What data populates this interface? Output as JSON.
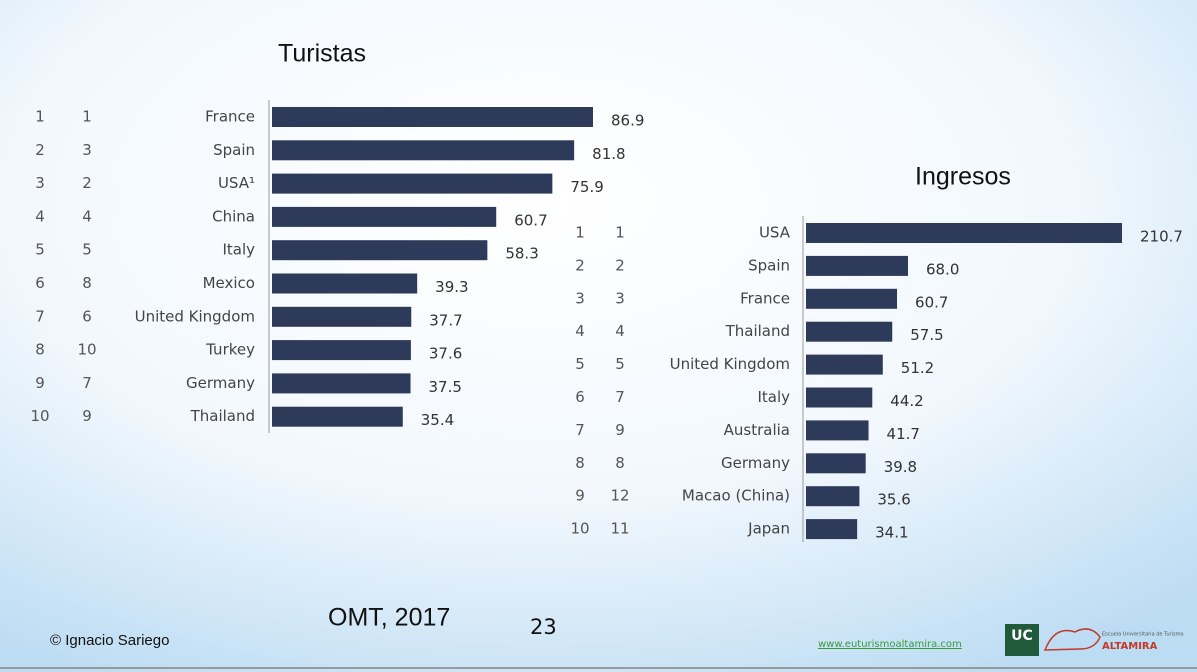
{
  "chart_data": [
    {
      "type": "bar",
      "orientation": "horizontal",
      "title": "Turistas",
      "color": "#2e3a5a",
      "rank_2017": [
        "1",
        "2",
        "3",
        "4",
        "5",
        "6",
        "7",
        "8",
        "9",
        "10"
      ],
      "rank_2016": [
        "1",
        "3",
        "2",
        "4",
        "5",
        "8",
        "6",
        "10",
        "7",
        "9"
      ],
      "categories": [
        "France",
        "Spain",
        "USA¹",
        "China",
        "Italy",
        "Mexico",
        "United Kingdom",
        "Turkey",
        "Germany",
        "Thailand"
      ],
      "values": [
        86.9,
        81.8,
        75.9,
        60.7,
        58.3,
        39.3,
        37.7,
        37.6,
        37.5,
        35.4
      ]
    },
    {
      "type": "bar",
      "orientation": "horizontal",
      "title": "Ingresos",
      "color": "#2e3a5a",
      "rank_2017": [
        "1",
        "2",
        "3",
        "4",
        "5",
        "6",
        "7",
        "8",
        "9",
        "10"
      ],
      "rank_2016": [
        "1",
        "2",
        "3",
        "4",
        "5",
        "7",
        "9",
        "8",
        "12",
        "11"
      ],
      "categories": [
        "USA",
        "Spain",
        "France",
        "Thailand",
        "United Kingdom",
        "Italy",
        "Australia",
        "Germany",
        "Macao (China)",
        "Japan"
      ],
      "values": [
        210.7,
        68.0,
        60.7,
        57.5,
        51.2,
        44.2,
        41.7,
        39.8,
        35.6,
        34.1
      ],
      "value_labels": [
        "210.7",
        "68.0",
        "60.7",
        "57.5",
        "51.2",
        "44.2",
        "41.7",
        "39.8",
        "35.6",
        "34.1"
      ]
    }
  ],
  "footer": {
    "author": "© Ignacio Sariego",
    "source": "OMT, 2017",
    "page": "23",
    "url": "www.euturismoaltamira.com",
    "logo_uc": "UC",
    "logo_school": "Escuela Universitaria de Turismo",
    "logo_name": "ALTAMIRA"
  }
}
